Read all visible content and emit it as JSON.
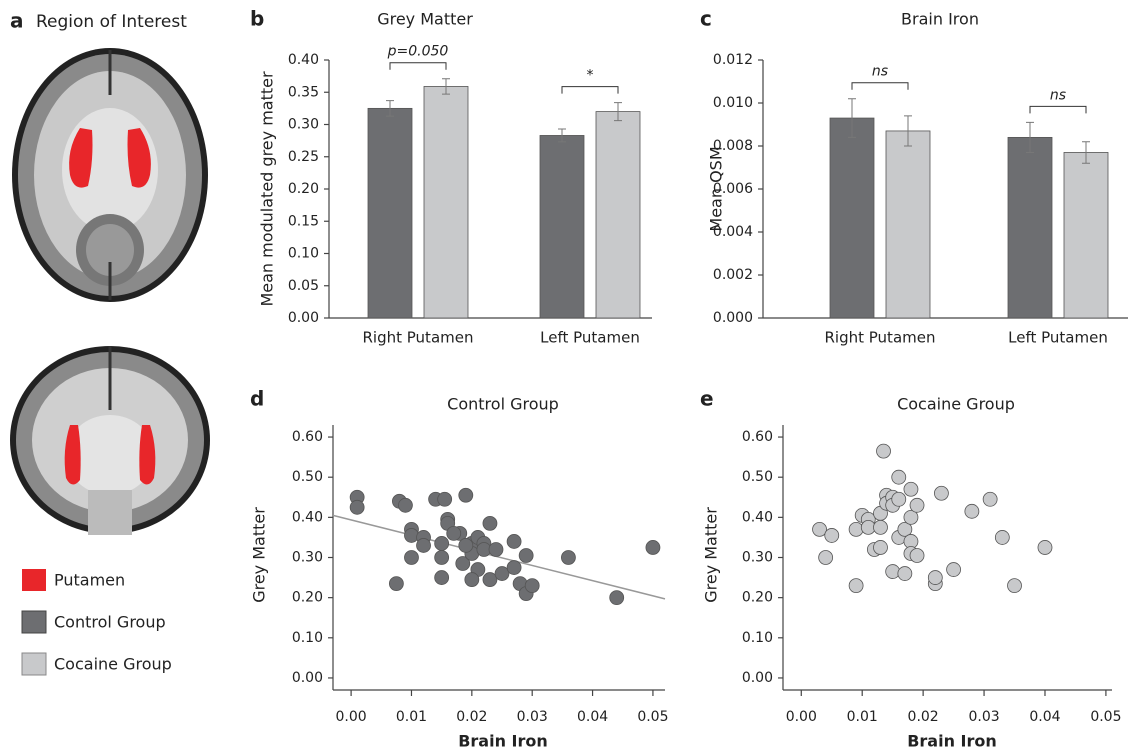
{
  "region_of_interest": {
    "panel": "a",
    "title": "Region of Interest",
    "putamen_label": "Putamen",
    "putamen_color": "#e8262a"
  },
  "chart_data": [
    {
      "type": "bar",
      "panel": "b",
      "title": "Grey Matter",
      "y_label": "Mean modulated grey matter",
      "categories": [
        "Right Putamen",
        "Left Putamen"
      ],
      "series": [
        {
          "name": "Control Group",
          "color": "#6d6e71",
          "values": [
            0.325,
            0.283
          ],
          "errors": [
            0.012,
            0.01
          ]
        },
        {
          "name": "Cocaine Group",
          "color": "#c8c9cb",
          "values": [
            0.359,
            0.32
          ],
          "errors": [
            0.012,
            0.014
          ]
        }
      ],
      "ylim": [
        0,
        0.4
      ],
      "yticks": [
        {
          "value": 0,
          "label": "0.00"
        },
        {
          "value": 0.05,
          "label": "0.05"
        },
        {
          "value": 0.1,
          "label": "0.10"
        },
        {
          "value": 0.15,
          "label": "0.15"
        },
        {
          "value": 0.2,
          "label": "0.20"
        },
        {
          "value": 0.25,
          "label": "0.25"
        },
        {
          "value": 0.3,
          "label": "0.30"
        },
        {
          "value": 0.35,
          "label": "0.35"
        },
        {
          "value": 0.4,
          "label": "0.40"
        }
      ],
      "annotations": [
        {
          "text": "p=0.050",
          "category": 0
        },
        {
          "text": "*",
          "category": 1
        }
      ]
    },
    {
      "type": "bar",
      "panel": "c",
      "title": "Brain Iron",
      "y_label": "Mean QSM",
      "categories": [
        "Right Putamen",
        "Left Putamen"
      ],
      "series": [
        {
          "color": "#6d6e71",
          "values": [
            0.0093,
            0.0084
          ],
          "errors": [
            0.0009,
            0.0007
          ]
        },
        {
          "color": "#c8c9cb",
          "values": [
            0.0087,
            0.0077
          ],
          "errors": [
            0.0007,
            0.0005
          ]
        }
      ],
      "ylim": [
        0,
        0.012
      ],
      "yticks": [
        {
          "value": 0,
          "label": "0.000"
        },
        {
          "value": 0.002,
          "label": "0.002"
        },
        {
          "value": 0.004,
          "label": "0.004"
        },
        {
          "value": 0.006,
          "label": "0.006"
        },
        {
          "value": 0.008,
          "label": "0.008"
        },
        {
          "value": 0.01,
          "label": "0.010"
        },
        {
          "value": 0.012,
          "label": "0.012"
        }
      ],
      "annotations": [
        {
          "text": "ns",
          "category": 0
        },
        {
          "text": "ns",
          "category": 1
        }
      ]
    },
    {
      "type": "scatter",
      "panel": "d",
      "title": "Control Group",
      "x_label": "Brain Iron",
      "y_label": "Grey Matter",
      "color": "#6d6e71",
      "x": [
        0.001,
        0.001,
        0.008,
        0.009,
        0.0075,
        0.01,
        0.01,
        0.01,
        0.012,
        0.012,
        0.014,
        0.0155,
        0.016,
        0.016,
        0.015,
        0.015,
        0.015,
        0.018,
        0.019,
        0.0185,
        0.02,
        0.02,
        0.021,
        0.021,
        0.02,
        0.022,
        0.022,
        0.023,
        0.023,
        0.024,
        0.025,
        0.027,
        0.027,
        0.028,
        0.029,
        0.029,
        0.03,
        0.036,
        0.044,
        0.05,
        0.017,
        0.019
      ],
      "values": [
        0.45,
        0.425,
        0.44,
        0.43,
        0.235,
        0.3,
        0.37,
        0.355,
        0.35,
        0.33,
        0.445,
        0.445,
        0.395,
        0.385,
        0.335,
        0.3,
        0.25,
        0.36,
        0.455,
        0.285,
        0.335,
        0.31,
        0.35,
        0.27,
        0.245,
        0.335,
        0.32,
        0.385,
        0.245,
        0.32,
        0.26,
        0.275,
        0.34,
        0.235,
        0.305,
        0.21,
        0.23,
        0.3,
        0.2,
        0.325,
        0.36,
        0.33
      ],
      "trend_line": {
        "x": [
          -0.003,
          0.052
        ],
        "y": [
          0.405,
          0.197
        ]
      },
      "xlim": [
        -0.003,
        0.052
      ],
      "ylim": [
        -0.03,
        0.63
      ],
      "xticks": [
        {
          "value": 0,
          "label": "0.00"
        },
        {
          "value": 0.01,
          "label": "0.01"
        },
        {
          "value": 0.02,
          "label": "0.02"
        },
        {
          "value": 0.03,
          "label": "0.03"
        },
        {
          "value": 0.04,
          "label": "0.04"
        },
        {
          "value": 0.05,
          "label": "0.05"
        }
      ],
      "yticks": [
        {
          "value": 0,
          "label": "0.00"
        },
        {
          "value": 0.1,
          "label": "0.10"
        },
        {
          "value": 0.2,
          "label": "0.20"
        },
        {
          "value": 0.3,
          "label": "0.30"
        },
        {
          "value": 0.4,
          "label": "0.40"
        },
        {
          "value": 0.5,
          "label": "0.50"
        },
        {
          "value": 0.6,
          "label": "0.60"
        }
      ]
    },
    {
      "type": "scatter",
      "panel": "e",
      "title": "Cocaine Group",
      "x_label": "Brain Iron",
      "y_label": "Grey Matter",
      "color": "#c8c9cb",
      "x": [
        0.003,
        0.004,
        0.005,
        0.009,
        0.009,
        0.01,
        0.011,
        0.011,
        0.012,
        0.013,
        0.013,
        0.013,
        0.0135,
        0.014,
        0.014,
        0.015,
        0.015,
        0.015,
        0.016,
        0.016,
        0.016,
        0.017,
        0.017,
        0.018,
        0.018,
        0.018,
        0.018,
        0.019,
        0.019,
        0.022,
        0.022,
        0.023,
        0.025,
        0.028,
        0.031,
        0.033,
        0.035,
        0.04
      ],
      "values": [
        0.37,
        0.3,
        0.355,
        0.37,
        0.23,
        0.405,
        0.395,
        0.375,
        0.32,
        0.41,
        0.375,
        0.325,
        0.565,
        0.455,
        0.435,
        0.45,
        0.43,
        0.265,
        0.5,
        0.445,
        0.35,
        0.37,
        0.26,
        0.47,
        0.4,
        0.34,
        0.31,
        0.43,
        0.305,
        0.235,
        0.25,
        0.46,
        0.27,
        0.415,
        0.445,
        0.35,
        0.23,
        0.325
      ],
      "xlim": [
        -0.003,
        0.051
      ],
      "ylim": [
        -0.03,
        0.63
      ],
      "xticks": [
        {
          "value": 0,
          "label": "0.00"
        },
        {
          "value": 0.01,
          "label": "0.01"
        },
        {
          "value": 0.02,
          "label": "0.02"
        },
        {
          "value": 0.03,
          "label": "0.03"
        },
        {
          "value": 0.04,
          "label": "0.04"
        },
        {
          "value": 0.05,
          "label": "0.05"
        }
      ],
      "yticks": [
        {
          "value": 0,
          "label": "0.00"
        },
        {
          "value": 0.1,
          "label": "0.10"
        },
        {
          "value": 0.2,
          "label": "0.20"
        },
        {
          "value": 0.3,
          "label": "0.30"
        },
        {
          "value": 0.4,
          "label": "0.40"
        },
        {
          "value": 0.5,
          "label": "0.50"
        },
        {
          "value": 0.6,
          "label": "0.60"
        }
      ]
    }
  ]
}
